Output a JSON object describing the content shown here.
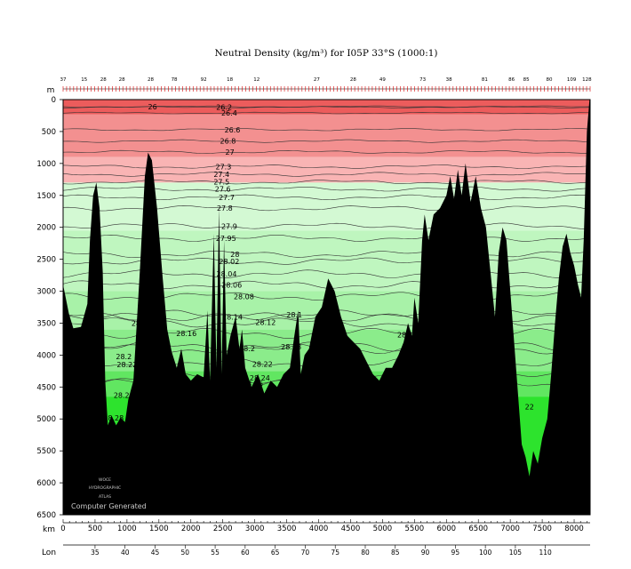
{
  "chart_data": {
    "type": "area",
    "title": "Neutral Density (kg/m³) for I05P 33°S (1000:1)",
    "y_unit_label": "m",
    "x_unit_label": "km",
    "lon_label": "Lon",
    "footer_text": "Computer Generated",
    "logo_lines": [
      "WOCE",
      "HYDROGRAPHIC",
      "ATLAS"
    ],
    "xlim": [
      0,
      8250
    ],
    "ylim": [
      6500,
      0
    ],
    "y_ticks": [
      0,
      500,
      1000,
      1500,
      2000,
      2500,
      3000,
      3500,
      4000,
      4500,
      5000,
      5500,
      6000,
      6500
    ],
    "x_ticks": [
      0,
      500,
      1000,
      1500,
      2000,
      2500,
      3000,
      3500,
      4000,
      4500,
      5000,
      5500,
      6000,
      6500,
      7000,
      7500,
      8000
    ],
    "lon_ticks": [
      {
        "lon": "35",
        "km": 500
      },
      {
        "lon": "40",
        "km": 970
      },
      {
        "lon": "45",
        "km": 1440
      },
      {
        "lon": "50",
        "km": 1910
      },
      {
        "lon": "55",
        "km": 2380
      },
      {
        "lon": "60",
        "km": 2850
      },
      {
        "lon": "65",
        "km": 3320
      },
      {
        "lon": "70",
        "km": 3790
      },
      {
        "lon": "75",
        "km": 4260
      },
      {
        "lon": "80",
        "km": 4730
      },
      {
        "lon": "85",
        "km": 5200
      },
      {
        "lon": "90",
        "km": 5670
      },
      {
        "lon": "95",
        "km": 6140
      },
      {
        "lon": "100",
        "km": 6610
      },
      {
        "lon": "105",
        "km": 7080
      },
      {
        "lon": "110",
        "km": 7550
      }
    ],
    "station_labels": [
      {
        "label": "37",
        "km": 0
      },
      {
        "label": "15",
        "km": 330
      },
      {
        "label": "28",
        "km": 630
      },
      {
        "label": "28",
        "km": 920
      },
      {
        "label": "28",
        "km": 1370
      },
      {
        "label": "78",
        "km": 1740
      },
      {
        "label": "92",
        "km": 2200
      },
      {
        "label": "18",
        "km": 2610
      },
      {
        "label": "12",
        "km": 3030
      },
      {
        "label": "27",
        "km": 3970
      },
      {
        "label": "28",
        "km": 4540
      },
      {
        "label": "49",
        "km": 5000
      },
      {
        "label": "73",
        "km": 5630
      },
      {
        "label": "38",
        "km": 6040
      },
      {
        "label": "81",
        "km": 6600
      },
      {
        "label": "86",
        "km": 7020
      },
      {
        "label": "85",
        "km": 7250
      },
      {
        "label": "80",
        "km": 7610
      },
      {
        "label": "109",
        "km": 7960
      },
      {
        "label": "128",
        "km": 8200
      }
    ],
    "fill_colors": {
      "red_surface": "#ec5c5c",
      "red_upper": "#f39090",
      "red_lower": "#f9b4b4",
      "green_pale": "#d3f9d3",
      "green_light": "#bff6bf",
      "green_mid": "#a8f2a8",
      "green_deep": "#8bec8b",
      "green_bottom": "#61e661",
      "green_abyss": "#2de32d",
      "bottom": "#000000",
      "contour": "#333333"
    },
    "bands": [
      {
        "from": 0,
        "to": 230,
        "color": "red_surface"
      },
      {
        "from": 230,
        "to": 900,
        "color": "red_upper"
      },
      {
        "from": 900,
        "to": 1300,
        "color": "red_lower"
      },
      {
        "from": 1300,
        "to": 2050,
        "color": "green_pale"
      },
      {
        "from": 2050,
        "to": 3000,
        "color": "green_light"
      },
      {
        "from": 3000,
        "to": 3600,
        "color": "green_mid"
      },
      {
        "from": 3600,
        "to": 4250,
        "color": "green_deep"
      },
      {
        "from": 4250,
        "to": 4650,
        "color": "green_bottom"
      },
      {
        "from": 4650,
        "to": 6500,
        "color": "green_abyss"
      }
    ],
    "contours": [
      {
        "label": "26",
        "depth": 110,
        "label_km": 1400
      },
      {
        "label": "26.2",
        "depth": 120,
        "label_km": 2520
      },
      {
        "label": "26.4",
        "depth": 210,
        "label_km": 2600
      },
      {
        "label": "26.6",
        "depth": 470,
        "label_km": 2650
      },
      {
        "label": "26.8",
        "depth": 650,
        "label_km": 2580
      },
      {
        "label": "27",
        "depth": 820,
        "label_km": 2610
      },
      {
        "label": "27.3",
        "depth": 1050,
        "label_km": 2510
      },
      {
        "label": "27.4",
        "depth": 1170,
        "label_km": 2480
      },
      {
        "label": "27.5",
        "depth": 1290,
        "label_km": 2480
      },
      {
        "label": "27.6",
        "depth": 1400,
        "label_km": 2500
      },
      {
        "label": "27.7",
        "depth": 1530,
        "label_km": 2560
      },
      {
        "label": "27.8",
        "depth": 1700,
        "label_km": 2530
      },
      {
        "label": "27.9",
        "depth": 1980,
        "label_km": 2600
      },
      {
        "label": "27.95",
        "depth": 2170,
        "label_km": 2550
      },
      {
        "label": "28",
        "depth": 2420,
        "label_km": 2690
      },
      {
        "label": "28.02",
        "depth": 2530,
        "label_km": 2600
      },
      {
        "label": "28.04",
        "depth": 2730,
        "label_km": 2560
      },
      {
        "label": "28.06",
        "depth": 2900,
        "label_km": 2640
      },
      {
        "label": "28.08",
        "depth": 3080,
        "label_km": 2830
      },
      {
        "label": "28.1",
        "depth": 3370,
        "label_km": 3620
      },
      {
        "label": "28.12",
        "depth": 3490,
        "label_km": 3170
      },
      {
        "label": "28.14",
        "depth": 3400,
        "label_km": 2650
      },
      {
        "label": "28.16",
        "depth": 3660,
        "label_km": 1930
      },
      {
        "label": "28.18",
        "depth": 3870,
        "label_km": 3570
      },
      {
        "label": "28.2",
        "depth": 3900,
        "label_km": 2880
      },
      {
        "label": "28.22",
        "depth": 4140,
        "label_km": 3120
      },
      {
        "label": "28.24",
        "depth": 4360,
        "label_km": 3080
      },
      {
        "label": "28.26",
        "depth": 4450,
        "label_km": 2970
      }
    ],
    "extra_labels": [
      {
        "label": "28",
        "depth": 3500,
        "km": 1140
      },
      {
        "label": "28.2",
        "depth": 4020,
        "km": 950
      },
      {
        "label": "28.22",
        "depth": 4150,
        "km": 1000
      },
      {
        "label": "28.26",
        "depth": 4630,
        "km": 950
      },
      {
        "label": "28.28",
        "depth": 4980,
        "km": 790
      },
      {
        "label": "28.14",
        "depth": 3680,
        "km": 5390
      },
      {
        "label": "22",
        "depth": 4810,
        "km": 7300
      }
    ],
    "bathymetry": [
      [
        0,
        2900
      ],
      [
        40,
        3100
      ],
      [
        90,
        3350
      ],
      [
        160,
        3580
      ],
      [
        280,
        3560
      ],
      [
        380,
        3200
      ],
      [
        420,
        2200
      ],
      [
        470,
        1500
      ],
      [
        520,
        1300
      ],
      [
        570,
        1700
      ],
      [
        620,
        2700
      ],
      [
        660,
        4400
      ],
      [
        700,
        5100
      ],
      [
        760,
        4950
      ],
      [
        830,
        5100
      ],
      [
        900,
        4980
      ],
      [
        970,
        5050
      ],
      [
        1020,
        4700
      ],
      [
        1100,
        4400
      ],
      [
        1200,
        2700
      ],
      [
        1280,
        1200
      ],
      [
        1330,
        830
      ],
      [
        1390,
        950
      ],
      [
        1470,
        1700
      ],
      [
        1560,
        2800
      ],
      [
        1630,
        3600
      ],
      [
        1700,
        3950
      ],
      [
        1780,
        4200
      ],
      [
        1850,
        3900
      ],
      [
        1920,
        4300
      ],
      [
        2000,
        4400
      ],
      [
        2100,
        4300
      ],
      [
        2200,
        4350
      ],
      [
        2260,
        3300
      ],
      [
        2300,
        4400
      ],
      [
        2360,
        2100
      ],
      [
        2400,
        4200
      ],
      [
        2440,
        1700
      ],
      [
        2480,
        4300
      ],
      [
        2520,
        2200
      ],
      [
        2560,
        4000
      ],
      [
        2620,
        3700
      ],
      [
        2700,
        3400
      ],
      [
        2760,
        3900
      ],
      [
        2800,
        3600
      ],
      [
        2850,
        4200
      ],
      [
        2950,
        4500
      ],
      [
        3050,
        4300
      ],
      [
        3150,
        4600
      ],
      [
        3250,
        4400
      ],
      [
        3350,
        4500
      ],
      [
        3450,
        4300
      ],
      [
        3550,
        4200
      ],
      [
        3620,
        3700
      ],
      [
        3680,
        3300
      ],
      [
        3720,
        4300
      ],
      [
        3780,
        4000
      ],
      [
        3850,
        3900
      ],
      [
        3950,
        3400
      ],
      [
        4050,
        3250
      ],
      [
        4150,
        2800
      ],
      [
        4250,
        3000
      ],
      [
        4350,
        3400
      ],
      [
        4450,
        3700
      ],
      [
        4550,
        3800
      ],
      [
        4650,
        3900
      ],
      [
        4750,
        4100
      ],
      [
        4850,
        4300
      ],
      [
        4950,
        4400
      ],
      [
        5050,
        4200
      ],
      [
        5150,
        4200
      ],
      [
        5250,
        4000
      ],
      [
        5330,
        3800
      ],
      [
        5400,
        3500
      ],
      [
        5460,
        3700
      ],
      [
        5500,
        3100
      ],
      [
        5560,
        3500
      ],
      [
        5620,
        2200
      ],
      [
        5660,
        1800
      ],
      [
        5720,
        2200
      ],
      [
        5800,
        1800
      ],
      [
        5900,
        1700
      ],
      [
        6000,
        1500
      ],
      [
        6060,
        1200
      ],
      [
        6120,
        1550
      ],
      [
        6180,
        1100
      ],
      [
        6240,
        1500
      ],
      [
        6300,
        1000
      ],
      [
        6380,
        1600
      ],
      [
        6460,
        1200
      ],
      [
        6540,
        1700
      ],
      [
        6620,
        2000
      ],
      [
        6700,
        2800
      ],
      [
        6760,
        3400
      ],
      [
        6820,
        2400
      ],
      [
        6880,
        2000
      ],
      [
        6940,
        2200
      ],
      [
        7000,
        3000
      ],
      [
        7060,
        3800
      ],
      [
        7120,
        4600
      ],
      [
        7180,
        5400
      ],
      [
        7240,
        5600
      ],
      [
        7300,
        5900
      ],
      [
        7360,
        5500
      ],
      [
        7430,
        5700
      ],
      [
        7500,
        5300
      ],
      [
        7580,
        5000
      ],
      [
        7640,
        4300
      ],
      [
        7700,
        3500
      ],
      [
        7760,
        2800
      ],
      [
        7820,
        2300
      ],
      [
        7880,
        2100
      ],
      [
        7940,
        2400
      ],
      [
        8000,
        2600
      ],
      [
        8060,
        2900
      ],
      [
        8110,
        3100
      ],
      [
        8150,
        2200
      ],
      [
        8200,
        500
      ],
      [
        8240,
        0
      ],
      [
        8250,
        0
      ]
    ]
  }
}
